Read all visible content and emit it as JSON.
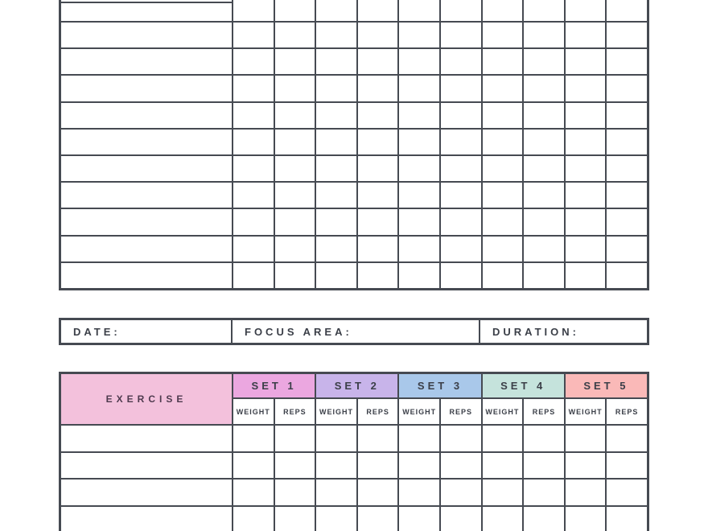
{
  "colors": {
    "grid_line": "#464a52",
    "label_text": "#3b3f48",
    "exercise_text": "#4e3a4e",
    "exercise_bg": "#f3c1dc",
    "cell_bg": "#ffffff"
  },
  "top_grid": {
    "wide_columns": 1,
    "narrow_columns": 10,
    "visible_rows": 11
  },
  "meta_bar": {
    "fields": [
      {
        "label": "DATE:"
      },
      {
        "label": "FOCUS AREA:"
      },
      {
        "label": "DURATION:"
      }
    ]
  },
  "exercise_table": {
    "exercise_header": "EXERCISE",
    "sets": [
      {
        "label": "SET 1",
        "color": "#eba7e0"
      },
      {
        "label": "SET 2",
        "color": "#c8b4ea"
      },
      {
        "label": "SET 3",
        "color": "#a9c8ea"
      },
      {
        "label": "SET 4",
        "color": "#c5e3dc"
      },
      {
        "label": "SET 5",
        "color": "#fab9b8"
      }
    ],
    "sub_headers": [
      "WEIGHT",
      "REPS"
    ],
    "body_row_count": 4
  }
}
